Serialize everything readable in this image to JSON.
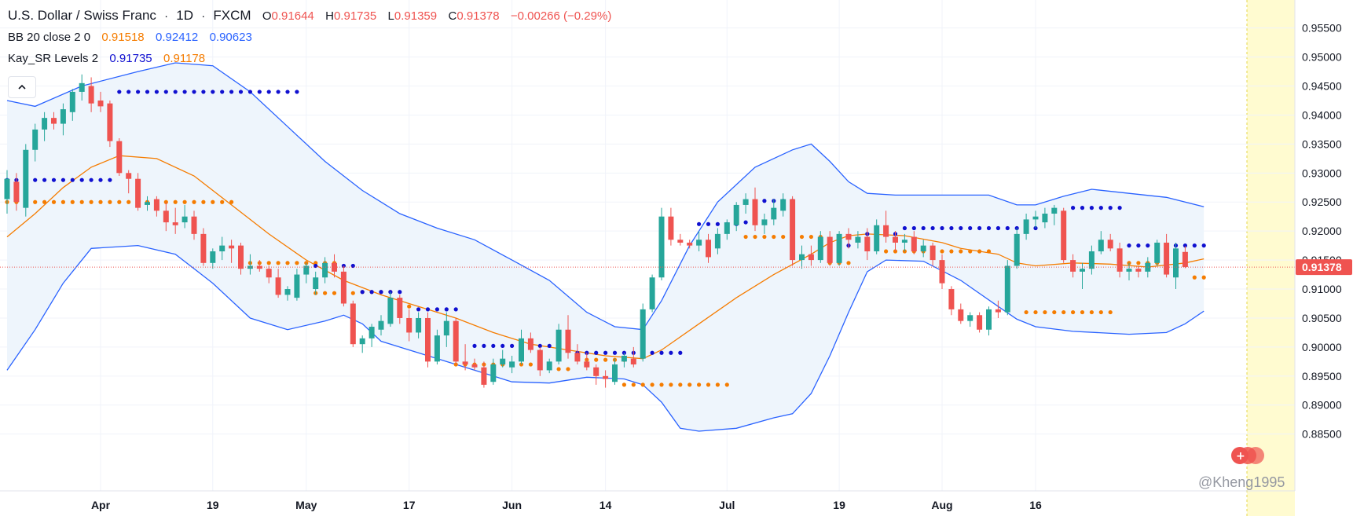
{
  "header": {
    "symbol": "U.S. Dollar / Swiss Franc",
    "sep": "·",
    "interval": "1D",
    "exchange": "FXCM",
    "o_label": "O",
    "o_value": "0.91644",
    "h_label": "H",
    "h_value": "0.91735",
    "l_label": "L",
    "l_value": "0.91359",
    "c_label": "C",
    "c_value": "0.91378",
    "change": "−0.00266 (−0.29%)"
  },
  "indicators": {
    "bb": {
      "label": "BB 20 close 2 0",
      "basis": "0.91518",
      "upper": "0.92412",
      "lower": "0.90623"
    },
    "sr": {
      "label": "Kay_SR Levels 2",
      "resistance": "0.91735",
      "support": "0.91178"
    }
  },
  "watermark": "@Kheng1995",
  "colors": {
    "up": "#26a69a",
    "down": "#ef5350",
    "band": "#2962ff",
    "band_fill": "#eef5fc",
    "basis": "#f57c00",
    "resistance_dots": "#1010d0",
    "support_dots": "#f57c00",
    "price_tag": "#ef5350",
    "future_highlight": "#fffbd0",
    "grid": "#f0f3fa"
  },
  "chart_data": {
    "type": "candlestick",
    "yaxis": {
      "ylim": [
        0.8813,
        0.9578
      ],
      "ticks": [
        "0.95500",
        "0.95000",
        "0.94500",
        "0.94000",
        "0.93500",
        "0.93000",
        "0.92500",
        "0.92000",
        "0.91500",
        "0.91000",
        "0.90500",
        "0.90000",
        "0.89500",
        "0.89000",
        "0.88500"
      ]
    },
    "xaxis_labels": [
      "Apr",
      "19",
      "May",
      "17",
      "Jun",
      "14",
      "Jul",
      "19",
      "Aug",
      "16"
    ],
    "last_price": "0.91378",
    "ohlc": [
      [
        0.9255,
        0.9305,
        0.923,
        0.929
      ],
      [
        0.9285,
        0.93,
        0.9235,
        0.925
      ],
      [
        0.924,
        0.935,
        0.9225,
        0.934
      ],
      [
        0.934,
        0.9385,
        0.932,
        0.9375
      ],
      [
        0.9375,
        0.9405,
        0.9355,
        0.9395
      ],
      [
        0.9395,
        0.9405,
        0.9375,
        0.9385
      ],
      [
        0.9385,
        0.942,
        0.9365,
        0.941
      ],
      [
        0.9405,
        0.9445,
        0.939,
        0.944
      ],
      [
        0.944,
        0.947,
        0.9425,
        0.9455
      ],
      [
        0.945,
        0.9465,
        0.9405,
        0.942
      ],
      [
        0.9425,
        0.944,
        0.9405,
        0.9415
      ],
      [
        0.942,
        0.9425,
        0.9345,
        0.9355
      ],
      [
        0.9355,
        0.936,
        0.9295,
        0.93
      ],
      [
        0.93,
        0.9305,
        0.9265,
        0.929
      ],
      [
        0.929,
        0.93,
        0.9235,
        0.924
      ],
      [
        0.9245,
        0.926,
        0.9235,
        0.925
      ],
      [
        0.9255,
        0.926,
        0.9225,
        0.9235
      ],
      [
        0.9235,
        0.925,
        0.92,
        0.9215
      ],
      [
        0.9215,
        0.924,
        0.9195,
        0.921
      ],
      [
        0.9215,
        0.9245,
        0.9205,
        0.9225
      ],
      [
        0.9225,
        0.9235,
        0.9185,
        0.9195
      ],
      [
        0.9195,
        0.9205,
        0.914,
        0.9145
      ],
      [
        0.9145,
        0.917,
        0.9135,
        0.9165
      ],
      [
        0.9165,
        0.919,
        0.915,
        0.9175
      ],
      [
        0.9175,
        0.9185,
        0.9145,
        0.917
      ],
      [
        0.9175,
        0.918,
        0.9125,
        0.9135
      ],
      [
        0.9135,
        0.916,
        0.9125,
        0.914
      ],
      [
        0.914,
        0.915,
        0.913,
        0.9135
      ],
      [
        0.9135,
        0.914,
        0.911,
        0.912
      ],
      [
        0.912,
        0.9135,
        0.9085,
        0.909
      ],
      [
        0.909,
        0.9105,
        0.908,
        0.91
      ],
      [
        0.9085,
        0.9135,
        0.908,
        0.9125
      ],
      [
        0.9125,
        0.9145,
        0.911,
        0.914
      ],
      [
        0.91,
        0.913,
        0.909,
        0.912
      ],
      [
        0.912,
        0.9155,
        0.911,
        0.9145
      ],
      [
        0.9145,
        0.916,
        0.912,
        0.913
      ],
      [
        0.913,
        0.914,
        0.907,
        0.9075
      ],
      [
        0.9075,
        0.908,
        0.9,
        0.9005
      ],
      [
        0.9005,
        0.902,
        0.899,
        0.9015
      ],
      [
        0.9015,
        0.904,
        0.9,
        0.9035
      ],
      [
        0.903,
        0.9055,
        0.902,
        0.9045
      ],
      [
        0.904,
        0.9095,
        0.9035,
        0.9085
      ],
      [
        0.9085,
        0.909,
        0.904,
        0.905
      ],
      [
        0.905,
        0.9065,
        0.901,
        0.9025
      ],
      [
        0.9025,
        0.906,
        0.9015,
        0.905
      ],
      [
        0.905,
        0.906,
        0.8965,
        0.8975
      ],
      [
        0.8975,
        0.903,
        0.897,
        0.902
      ],
      [
        0.902,
        0.906,
        0.9,
        0.9045
      ],
      [
        0.9045,
        0.905,
        0.897,
        0.8975
      ],
      [
        0.8975,
        0.9005,
        0.896,
        0.897
      ],
      [
        0.897,
        0.898,
        0.896,
        0.8965
      ],
      [
        0.8965,
        0.8975,
        0.893,
        0.8935
      ],
      [
        0.894,
        0.898,
        0.8935,
        0.897
      ],
      [
        0.897,
        0.8995,
        0.8965,
        0.898
      ],
      [
        0.8965,
        0.8985,
        0.8955,
        0.8975
      ],
      [
        0.8975,
        0.903,
        0.897,
        0.9015
      ],
      [
        0.9015,
        0.9025,
        0.899,
        0.8995
      ],
      [
        0.8995,
        0.9,
        0.895,
        0.896
      ],
      [
        0.896,
        0.898,
        0.8955,
        0.8975
      ],
      [
        0.8975,
        0.904,
        0.897,
        0.903
      ],
      [
        0.903,
        0.9055,
        0.898,
        0.899
      ],
      [
        0.899,
        0.9005,
        0.897,
        0.8975
      ],
      [
        0.8975,
        0.899,
        0.896,
        0.8965
      ],
      [
        0.8965,
        0.897,
        0.8935,
        0.895
      ],
      [
        0.895,
        0.896,
        0.893,
        0.8945
      ],
      [
        0.894,
        0.898,
        0.8935,
        0.897
      ],
      [
        0.8975,
        0.899,
        0.8965,
        0.8985
      ],
      [
        0.898,
        0.9,
        0.8965,
        0.897
      ],
      [
        0.898,
        0.9075,
        0.8975,
        0.9065
      ],
      [
        0.9065,
        0.9125,
        0.906,
        0.912
      ],
      [
        0.912,
        0.924,
        0.9115,
        0.9225
      ],
      [
        0.9225,
        0.924,
        0.9175,
        0.9185
      ],
      [
        0.9185,
        0.9195,
        0.9175,
        0.918
      ],
      [
        0.918,
        0.9185,
        0.917,
        0.9175
      ],
      [
        0.9175,
        0.92,
        0.9165,
        0.9185
      ],
      [
        0.9185,
        0.9195,
        0.9145,
        0.9155
      ],
      [
        0.917,
        0.9205,
        0.916,
        0.9195
      ],
      [
        0.9195,
        0.922,
        0.9185,
        0.9215
      ],
      [
        0.921,
        0.925,
        0.92,
        0.9245
      ],
      [
        0.9245,
        0.9265,
        0.923,
        0.9255
      ],
      [
        0.9255,
        0.9275,
        0.92,
        0.921
      ],
      [
        0.921,
        0.923,
        0.9195,
        0.922
      ],
      [
        0.922,
        0.9255,
        0.921,
        0.924
      ],
      [
        0.9235,
        0.9265,
        0.9225,
        0.9255
      ],
      [
        0.9255,
        0.926,
        0.914,
        0.915
      ],
      [
        0.915,
        0.9175,
        0.9135,
        0.916
      ],
      [
        0.916,
        0.9175,
        0.914,
        0.915
      ],
      [
        0.915,
        0.92,
        0.9145,
        0.919
      ],
      [
        0.919,
        0.92,
        0.914,
        0.9145
      ],
      [
        0.9145,
        0.92,
        0.914,
        0.9195
      ],
      [
        0.9195,
        0.9205,
        0.917,
        0.9185
      ],
      [
        0.918,
        0.92,
        0.917,
        0.919
      ],
      [
        0.919,
        0.9205,
        0.915,
        0.9165
      ],
      [
        0.9165,
        0.922,
        0.916,
        0.921
      ],
      [
        0.921,
        0.9235,
        0.918,
        0.919
      ],
      [
        0.919,
        0.92,
        0.9165,
        0.918
      ],
      [
        0.918,
        0.9195,
        0.9165,
        0.9185
      ],
      [
        0.919,
        0.92,
        0.916,
        0.9165
      ],
      [
        0.9165,
        0.9185,
        0.9155,
        0.9175
      ],
      [
        0.9175,
        0.918,
        0.914,
        0.915
      ],
      [
        0.915,
        0.916,
        0.91,
        0.911
      ],
      [
        0.91,
        0.9105,
        0.9055,
        0.9065
      ],
      [
        0.9065,
        0.9075,
        0.904,
        0.9045
      ],
      [
        0.9045,
        0.906,
        0.9035,
        0.9055
      ],
      [
        0.9055,
        0.906,
        0.9025,
        0.903
      ],
      [
        0.903,
        0.907,
        0.902,
        0.9065
      ],
      [
        0.9065,
        0.908,
        0.905,
        0.906
      ],
      [
        0.906,
        0.915,
        0.9055,
        0.914
      ],
      [
        0.914,
        0.9205,
        0.9135,
        0.9195
      ],
      [
        0.9195,
        0.923,
        0.9185,
        0.922
      ],
      [
        0.922,
        0.9235,
        0.9205,
        0.9225
      ],
      [
        0.9215,
        0.924,
        0.9205,
        0.923
      ],
      [
        0.923,
        0.9245,
        0.921,
        0.924
      ],
      [
        0.9235,
        0.924,
        0.9145,
        0.915
      ],
      [
        0.915,
        0.916,
        0.912,
        0.913
      ],
      [
        0.913,
        0.9145,
        0.91,
        0.9135
      ],
      [
        0.9135,
        0.9175,
        0.9125,
        0.9165
      ],
      [
        0.9165,
        0.92,
        0.916,
        0.9185
      ],
      [
        0.9185,
        0.9195,
        0.9165,
        0.917
      ],
      [
        0.917,
        0.918,
        0.912,
        0.913
      ],
      [
        0.913,
        0.9145,
        0.9115,
        0.9135
      ],
      [
        0.9135,
        0.914,
        0.912,
        0.913
      ],
      [
        0.913,
        0.9155,
        0.912,
        0.9145
      ],
      [
        0.9145,
        0.9185,
        0.914,
        0.918
      ],
      [
        0.918,
        0.9195,
        0.912,
        0.9125
      ],
      [
        0.912,
        0.918,
        0.91,
        0.917
      ],
      [
        0.9164,
        0.9174,
        0.9136,
        0.9138
      ]
    ],
    "bb_upper": [
      [
        0,
        0.9425
      ],
      [
        3,
        0.9415
      ],
      [
        8,
        0.945
      ],
      [
        14,
        0.9475
      ],
      [
        18,
        0.949
      ],
      [
        22,
        0.9485
      ],
      [
        26,
        0.944
      ],
      [
        30,
        0.938
      ],
      [
        34,
        0.932
      ],
      [
        38,
        0.927
      ],
      [
        42,
        0.923
      ],
      [
        46,
        0.9205
      ],
      [
        50,
        0.9185
      ],
      [
        54,
        0.915
      ],
      [
        58,
        0.9115
      ],
      [
        62,
        0.906
      ],
      [
        65,
        0.9035
      ],
      [
        68,
        0.903
      ],
      [
        70,
        0.908
      ],
      [
        73,
        0.9175
      ],
      [
        76,
        0.925
      ],
      [
        80,
        0.931
      ],
      [
        84,
        0.934
      ],
      [
        86,
        0.935
      ],
      [
        88,
        0.932
      ],
      [
        90,
        0.9285
      ],
      [
        92,
        0.9265
      ],
      [
        95,
        0.9262
      ],
      [
        100,
        0.9262
      ],
      [
        105,
        0.9262
      ],
      [
        108,
        0.9245
      ],
      [
        110,
        0.9245
      ],
      [
        113,
        0.926
      ],
      [
        116,
        0.9272
      ],
      [
        120,
        0.9265
      ],
      [
        124,
        0.9258
      ],
      [
        128,
        0.9242
      ]
    ],
    "bb_lower": [
      [
        0,
        0.896
      ],
      [
        3,
        0.903
      ],
      [
        6,
        0.911
      ],
      [
        9,
        0.917
      ],
      [
        14,
        0.9175
      ],
      [
        18,
        0.916
      ],
      [
        22,
        0.911
      ],
      [
        26,
        0.905
      ],
      [
        30,
        0.903
      ],
      [
        34,
        0.9045
      ],
      [
        36,
        0.9055
      ],
      [
        38,
        0.904
      ],
      [
        40,
        0.901
      ],
      [
        44,
        0.899
      ],
      [
        48,
        0.897
      ],
      [
        52,
        0.895
      ],
      [
        54,
        0.894
      ],
      [
        58,
        0.8938
      ],
      [
        62,
        0.8948
      ],
      [
        66,
        0.8945
      ],
      [
        68,
        0.8935
      ],
      [
        70,
        0.8905
      ],
      [
        72,
        0.886
      ],
      [
        74,
        0.8855
      ],
      [
        78,
        0.886
      ],
      [
        82,
        0.8878
      ],
      [
        84,
        0.8885
      ],
      [
        86,
        0.892
      ],
      [
        88,
        0.8985
      ],
      [
        90,
        0.906
      ],
      [
        92,
        0.913
      ],
      [
        94,
        0.915
      ],
      [
        98,
        0.9148
      ],
      [
        102,
        0.9115
      ],
      [
        106,
        0.907
      ],
      [
        108,
        0.9048
      ],
      [
        110,
        0.9035
      ],
      [
        114,
        0.9027
      ],
      [
        120,
        0.9022
      ],
      [
        124,
        0.9025
      ],
      [
        126,
        0.904
      ],
      [
        128,
        0.9062
      ]
    ],
    "bb_basis": [
      [
        0,
        0.919
      ],
      [
        3,
        0.923
      ],
      [
        6,
        0.9275
      ],
      [
        9,
        0.931
      ],
      [
        12,
        0.933
      ],
      [
        16,
        0.9325
      ],
      [
        20,
        0.9295
      ],
      [
        24,
        0.9245
      ],
      [
        28,
        0.9195
      ],
      [
        32,
        0.915
      ],
      [
        36,
        0.9115
      ],
      [
        40,
        0.909
      ],
      [
        44,
        0.907
      ],
      [
        48,
        0.905
      ],
      [
        52,
        0.9025
      ],
      [
        56,
        0.9005
      ],
      [
        60,
        0.8995
      ],
      [
        64,
        0.8985
      ],
      [
        68,
        0.898
      ],
      [
        70,
        0.8995
      ],
      [
        74,
        0.904
      ],
      [
        78,
        0.9085
      ],
      [
        82,
        0.9125
      ],
      [
        86,
        0.916
      ],
      [
        88,
        0.918
      ],
      [
        90,
        0.9192
      ],
      [
        92,
        0.9195
      ],
      [
        96,
        0.9192
      ],
      [
        100,
        0.918
      ],
      [
        102,
        0.917
      ],
      [
        106,
        0.916
      ],
      [
        108,
        0.9145
      ],
      [
        110,
        0.914
      ],
      [
        114,
        0.9145
      ],
      [
        118,
        0.9143
      ],
      [
        122,
        0.9138
      ],
      [
        126,
        0.9145
      ],
      [
        128,
        0.9152
      ]
    ],
    "sr_resistance": [
      [
        0,
        11,
        0.9288
      ],
      [
        12,
        31,
        0.944
      ],
      [
        33,
        37,
        0.914
      ],
      [
        38,
        42,
        0.9095
      ],
      [
        44,
        48,
        0.9065
      ],
      [
        50,
        58,
        0.9002
      ],
      [
        61,
        72,
        0.899
      ],
      [
        74,
        78,
        0.9212
      ],
      [
        79,
        80,
        0.9215
      ],
      [
        81,
        84,
        0.9252
      ],
      [
        88,
        90,
        0.9175
      ],
      [
        92,
        95,
        0.9195
      ],
      [
        96,
        110,
        0.9205
      ],
      [
        114,
        119,
        0.924
      ],
      [
        120,
        128,
        0.9175
      ]
    ],
    "sr_support": [
      [
        0,
        24,
        0.925
      ],
      [
        25,
        35,
        0.9145
      ],
      [
        33,
        37,
        0.9093
      ],
      [
        38,
        41,
        0.9095
      ],
      [
        42,
        43,
        0.907
      ],
      [
        48,
        58,
        0.897
      ],
      [
        59,
        60,
        0.8962
      ],
      [
        62,
        66,
        0.8978
      ],
      [
        66,
        77,
        0.8935
      ],
      [
        79,
        87,
        0.919
      ],
      [
        88,
        90,
        0.9145
      ],
      [
        94,
        105,
        0.9165
      ],
      [
        109,
        118,
        0.906
      ],
      [
        120,
        126,
        0.9145
      ],
      [
        127,
        128,
        0.912
      ]
    ]
  }
}
